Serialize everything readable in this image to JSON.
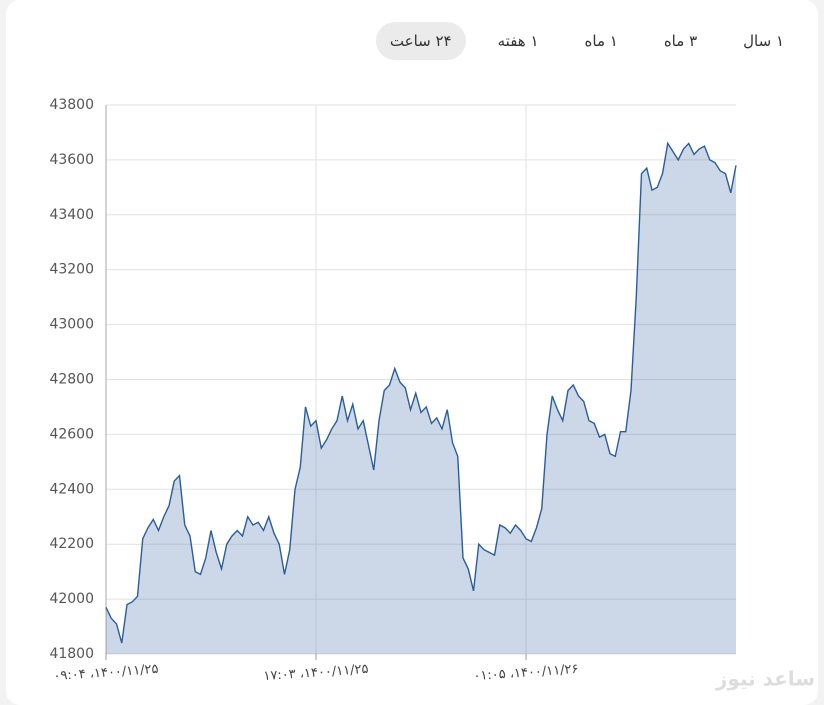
{
  "tabs": [
    "۲۴ ساعت",
    "۱ هفته",
    "۱ ماه",
    "۳ ماه",
    "۱ سال"
  ],
  "selected_tab": 0,
  "watermark": "ساعد نیوز",
  "chart_data": {
    "type": "area",
    "categories": [
      "۰۹:۰۴ ،۱۴۰۰/۱۱/۲۵",
      null,
      null,
      null,
      null,
      null,
      null,
      null,
      null,
      null,
      null,
      null,
      null,
      null,
      null,
      null,
      null,
      null,
      null,
      null,
      null,
      null,
      null,
      null,
      null,
      null,
      null,
      null,
      null,
      null,
      null,
      null,
      null,
      null,
      null,
      null,
      null,
      null,
      null,
      null,
      "۱۷:۰۳ ،۱۴۰۰/۱۱/۲۵",
      null,
      null,
      null,
      null,
      null,
      null,
      null,
      null,
      null,
      null,
      null,
      null,
      null,
      null,
      null,
      null,
      null,
      null,
      null,
      null,
      null,
      null,
      null,
      null,
      null,
      null,
      null,
      null,
      null,
      null,
      null,
      null,
      null,
      null,
      null,
      null,
      null,
      null,
      null,
      "۰۱:۰۵ ،۱۴۰۰/۱۱/۲۶",
      null,
      null,
      null,
      null,
      null,
      null,
      null,
      null,
      null,
      null,
      null,
      null,
      null,
      null,
      null,
      null,
      null,
      null,
      null,
      null,
      null,
      null,
      null,
      null,
      null,
      null,
      null,
      null,
      null,
      null,
      null,
      null,
      null,
      null,
      null,
      null,
      null,
      null,
      null,
      null
    ],
    "values": [
      41970,
      41930,
      41910,
      41840,
      41980,
      41990,
      42010,
      42220,
      42260,
      42290,
      42250,
      42300,
      42340,
      42430,
      42450,
      42270,
      42230,
      42100,
      42090,
      42150,
      42250,
      42170,
      42110,
      42200,
      42230,
      42250,
      42230,
      42300,
      42270,
      42280,
      42250,
      42300,
      42240,
      42200,
      42090,
      42180,
      42400,
      42480,
      42700,
      42630,
      42650,
      42550,
      42580,
      42620,
      42650,
      42740,
      42650,
      42710,
      42620,
      42650,
      42560,
      42470,
      42650,
      42760,
      42780,
      42840,
      42790,
      42770,
      42690,
      42750,
      42680,
      42700,
      42640,
      42660,
      42620,
      42690,
      42570,
      42520,
      42150,
      42110,
      42030,
      42200,
      42180,
      42170,
      42160,
      42270,
      42260,
      42240,
      42270,
      42250,
      42220,
      42210,
      42260,
      42330,
      42600,
      42740,
      42690,
      42650,
      42760,
      42780,
      42740,
      42720,
      42650,
      42640,
      42590,
      42600,
      42530,
      42520,
      42610,
      42610,
      42760,
      43100,
      43550,
      43570,
      43490,
      43500,
      43550,
      43660,
      43630,
      43600,
      43640,
      43660,
      43620,
      43640,
      43650,
      43600,
      43590,
      43560,
      43550,
      43480,
      43580
    ],
    "color": "#2a5d9b",
    "ylim": [
      41800,
      43800
    ],
    "yticks": [
      41800,
      42000,
      42200,
      42400,
      42600,
      42800,
      43000,
      43200,
      43400,
      43600,
      43800
    ],
    "grid": true
  }
}
